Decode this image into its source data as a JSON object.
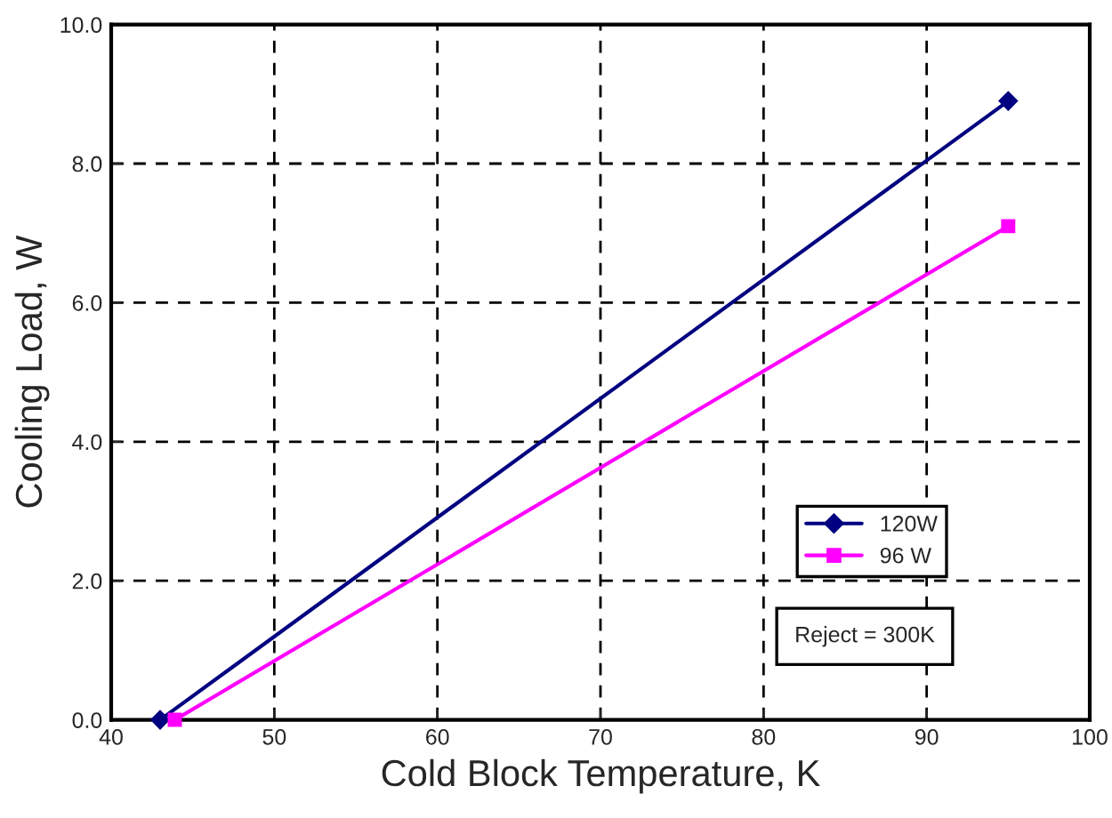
{
  "chart_data": {
    "type": "line",
    "xlabel": "Cold Block Temperature, K",
    "ylabel": "Cooling Load, W",
    "series": [
      {
        "name": "120W",
        "color": "#000080",
        "marker": "diamond",
        "x": [
          43.0,
          95.0
        ],
        "values": [
          0.0,
          8.9
        ]
      },
      {
        "name": "96 W",
        "color": "#ff00ff",
        "marker": "square",
        "x": [
          43.9,
          95.0
        ],
        "values": [
          0.0,
          7.1
        ]
      }
    ],
    "xlim": [
      40,
      100
    ],
    "xticks": [
      40,
      50,
      60,
      70,
      80,
      90,
      100
    ],
    "ylim": [
      0,
      10
    ],
    "yticks": [
      {
        "value": 0,
        "label": "0.0"
      },
      {
        "value": 2,
        "label": "2.0"
      },
      {
        "value": 4,
        "label": "4.0"
      },
      {
        "value": 6,
        "label": "6.0"
      },
      {
        "value": 8,
        "label": "8.0"
      },
      {
        "value": 10,
        "label": "10.0"
      }
    ],
    "grid": true,
    "legend": "bottom right",
    "line_style": "solid",
    "annotations": [
      "Reject = 300K"
    ]
  }
}
